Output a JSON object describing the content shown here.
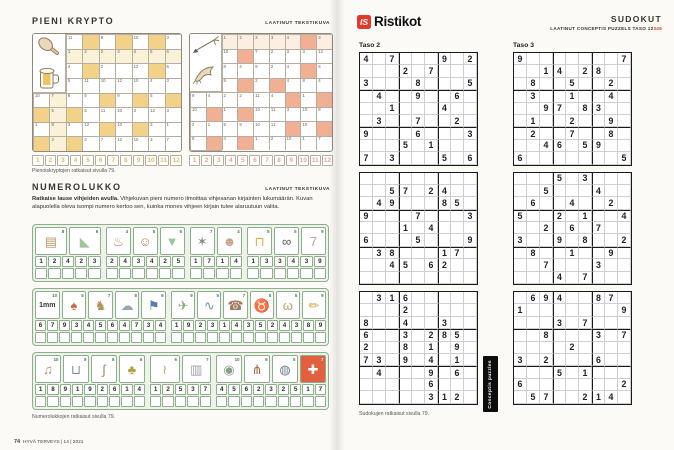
{
  "footer": {
    "page_number": "74",
    "magazine": "HYVÄ TERVEYS | 14 | 2021"
  },
  "krypto": {
    "title": "PIENI KRYPTO",
    "credit": "LAATINUT TEKSTIKUVA",
    "caption": "Pienoiskryptojen ratkaisut sivulla 79.",
    "answer_numbers": [
      "1",
      "2",
      "3",
      "4",
      "5",
      "6",
      "7",
      "8",
      "9",
      "10",
      "11",
      "12"
    ],
    "grids": [
      {
        "theme": "yellow",
        "images": [
          "frying-pan",
          "beer-mug"
        ],
        "rows": [
          [
            "11|w",
            "|h",
            "9|w",
            "|h",
            "10|w",
            "|h",
            "3|w"
          ],
          [
            "1|t",
            "2|t",
            "2|t",
            "3|t",
            "4|t",
            "5|t",
            "6|t"
          ],
          [
            "4|w",
            "|h",
            "2|w",
            "|w",
            "12|w",
            "|h",
            "6|w"
          ],
          [
            "5|w",
            "11|w",
            "10|w",
            "12|w",
            "10|w",
            "4|w",
            "3|w"
          ],
          [
            "10|w",
            "7|t",
            "8|w",
            "5|w",
            "|h",
            "9|w",
            "|h",
            "5|w",
            "|h"
          ],
          [
            "|h",
            "5|t",
            "|h",
            "5|w",
            "11|w",
            "10|w",
            "3|w",
            "12|w",
            "3|w"
          ],
          [
            "1|w",
            "8|t",
            "3|w",
            "12|w",
            "|h",
            "10|w",
            "|h",
            "3|w",
            "1|w"
          ],
          [
            "|h",
            "3|t",
            "|h",
            "3|w",
            "7|w",
            "12|w",
            "10|w",
            "3|w",
            "7|w"
          ]
        ]
      },
      {
        "theme": "salmon",
        "images": [
          "dart",
          "bird"
        ],
        "rows": [
          [
            "1|t",
            "2|t",
            "3|t",
            "3|t",
            "4|t",
            "|h",
            "3|t"
          ],
          [
            "10|w",
            "|h",
            "7|w",
            "2|w",
            "3|w",
            "3|w",
            "12|w"
          ],
          [
            "8|w",
            "4|w",
            "9|w",
            "2|w",
            "4|w",
            "|h",
            "5|w"
          ],
          [
            "5|w",
            "|h",
            "2|w",
            "|h",
            "4|w",
            "8|w",
            "4|w",
            "9|w",
            "4|w"
          ],
          [
            "2|w",
            "2|w",
            "11|w",
            "4|w",
            "|h",
            "1|w",
            "|h",
            "10|w",
            "|h"
          ],
          [
            "1|w",
            "|h",
            "10|w",
            "11|w",
            "3|w",
            "10|w",
            "8|w",
            "2|w",
            "1|w"
          ],
          [
            "5|w",
            "9|w",
            "10|w",
            "11|w",
            "|h",
            "10|w",
            "|h",
            "8|w",
            "|h"
          ],
          [
            "4|w",
            "|h",
            "1|w",
            "2|w",
            "10|w",
            "1|w",
            "7|w",
            "12|w",
            "8|w"
          ]
        ]
      }
    ]
  },
  "numerolukko": {
    "title": "NUMEROLUKKO",
    "credit": "LAATINUT TEKSTIKUVA",
    "intro_bold": "Ratkaise lause vihjeiden avulla.",
    "intro_rest": " Vihjekuvan pieni numero ilmoittaa vihjesanan kirjainten lukumäärän. Kuvan alapuolella oleva isompi numero kertoo sen, kuinka mones vihjeen kirjain tulee alaruutuun valita.",
    "caption": "Numerolukkojen ratkaisut sivulla 79.",
    "rows": [
      {
        "groups": [
          {
            "pictures": [
              {
                "icon": "sandwich",
                "count": "8"
              },
              {
                "icon": "high-heel-shoe",
                "count": "6"
              }
            ],
            "numbers": [
              "1",
              "2",
              "4",
              "2",
              "3"
            ]
          },
          {
            "pictures": [
              {
                "icon": "bathtub",
                "count": "4"
              },
              {
                "icon": "monkey",
                "count": "5"
              },
              {
                "icon": "shirt",
                "count": "5"
              }
            ],
            "numbers": [
              "2",
              "4",
              "3",
              "4",
              "2",
              "5"
            ]
          },
          {
            "pictures": [
              {
                "icon": "nut",
                "count": "7"
              },
              {
                "icon": "sniffing-man",
                "count": "4"
              }
            ],
            "numbers": [
              "1",
              "7",
              "1",
              "4"
            ]
          },
          {
            "pictures": [
              {
                "icon": "table",
                "count": "5"
              },
              {
                "icon": "bicycle",
                "count": "5"
              },
              {
                "icon": "number-seven",
                "count": "9"
              }
            ],
            "numbers": [
              "1",
              "3",
              "3",
              "4",
              "3",
              "9"
            ]
          }
        ]
      },
      {
        "groups": [
          {
            "pictures": [
              {
                "icon": "one-millimeter",
                "count": "10"
              },
              {
                "icon": "mushroom",
                "count": "5"
              },
              {
                "icon": "donkey",
                "count": "7"
              },
              {
                "icon": "cloud",
                "count": "8"
              },
              {
                "icon": "flag",
                "count": "6"
              }
            ],
            "numbers": [
              "6",
              "7",
              "9",
              "3",
              "4",
              "5",
              "6",
              "4",
              "7",
              "3",
              "4"
            ]
          },
          {
            "pictures": [
              {
                "icon": "airplane",
                "count": "9"
              },
              {
                "icon": "dolphin",
                "count": "5"
              },
              {
                "icon": "mobile-phone",
                "count": "7"
              },
              {
                "icon": "bull",
                "count": "5"
              },
              {
                "icon": "cat",
                "count": "5"
              },
              {
                "icon": "pencil",
                "count": "9"
              }
            ],
            "numbers": [
              "1",
              "9",
              "2",
              "3",
              "1",
              "4",
              "3",
              "5",
              "2",
              "4",
              "3",
              "8",
              "9"
            ]
          }
        ]
      },
      {
        "groups": [
          {
            "pictures": [
              {
                "icon": "dancing-couple",
                "count": "10"
              },
              {
                "icon": "blender",
                "count": "9"
              },
              {
                "icon": "italy-map",
                "count": "6"
              },
              {
                "icon": "pineapple",
                "count": "6"
              }
            ],
            "numbers": [
              "1",
              "8",
              "9",
              "1",
              "9",
              "2",
              "6",
              "1",
              "4"
            ]
          },
          {
            "pictures": [
              {
                "icon": "weasel",
                "count": "6"
              },
              {
                "icon": "radiator",
                "count": "7"
              }
            ],
            "numbers": [
              "1",
              "2",
              "5",
              "3",
              "7"
            ]
          },
          {
            "pictures": [
              {
                "icon": "seashell",
                "count": "10"
              },
              {
                "icon": "rake",
                "count": "6"
              },
              {
                "icon": "diving-helmet",
                "count": "5"
              },
              {
                "icon": "red-cross",
                "count": "7"
              }
            ],
            "numbers": [
              "4",
              "5",
              "6",
              "2",
              "3",
              "2",
              "5",
              "1",
              "7"
            ]
          }
        ]
      }
    ]
  },
  "sudoku": {
    "logo_badge": "IS",
    "logo_name": "Ristikot",
    "title": "SUDOKUT",
    "credit_prefix": "LAATINUT CONCEPTIS PUZZELS TASO 12",
    "credit_levels": "345",
    "caption": "Sudokujen ratkaisut sivulla 79.",
    "badge_text": "Conceptis puzzles",
    "columns": [
      {
        "label": "Taso 2",
        "grids": [
          [
            "4.7...9.2",
            "...2.7...",
            "3...8...5",
            ".4..9..6.",
            "..1...4..",
            ".3..7..2.",
            "9...6...3",
            "...5.1...",
            "7.3...5.6"
          ],
          [
            ".........",
            "..57.24..",
            ".49...85.",
            "9...7...3",
            "...1.4...",
            "6...5...9",
            ".38...17.",
            "..45.62..",
            "........."
          ],
          [
            ".316.....",
            "...2.....",
            "8..4..3..",
            "6..3.285.",
            "2..8.1.9.",
            "73.9.4.1.",
            ".4...9.6.",
            ".....6...",
            ".....312."
          ]
        ]
      },
      {
        "label": "Taso 3",
        "grids": [
          [
            "9.......7",
            "..14.28..",
            ".8..5..2.",
            ".3..1..4.",
            "..97.83..",
            ".1..2..9.",
            ".2..7..8.",
            "..46.59..",
            "6.......5"
          ],
          [
            "...5.3...",
            "..5...4..",
            ".6..4..2.",
            "5..2.1..4",
            "..2.6.7..",
            "3..9.8..2",
            ".8..1..9.",
            "..7...3..",
            "...4.7..."
          ],
          [
            ".694..87.",
            "1.......9",
            "...3.7...",
            "..8...3.7",
            "....2....",
            "3.2...6..",
            "...5.1...",
            "6.......2",
            ".57..214."
          ]
        ]
      }
    ]
  }
}
